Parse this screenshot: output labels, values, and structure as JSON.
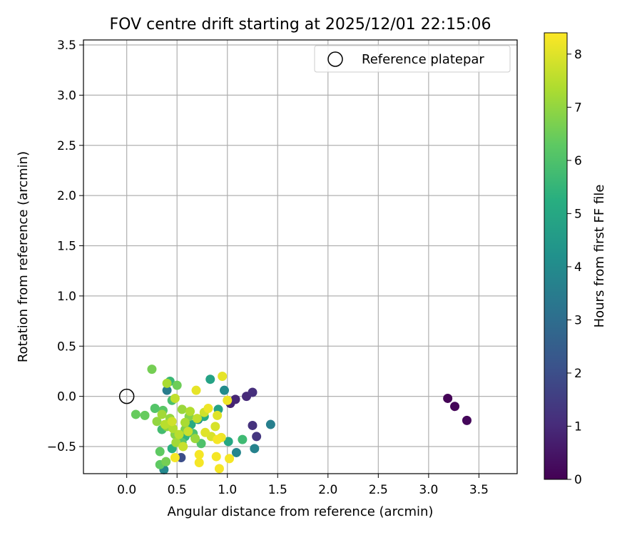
{
  "chart_data": {
    "type": "scatter",
    "title": "FOV centre drift starting at 2025/12/01 22:15:06",
    "xlabel": "Angular distance from reference (arcmin)",
    "ylabel": "Rotation from reference (arcmin)",
    "xlim": [
      -0.43,
      3.88
    ],
    "ylim": [
      -0.77,
      3.55
    ],
    "xticks": [
      0.0,
      0.5,
      1.0,
      1.5,
      2.0,
      2.5,
      3.0,
      3.5
    ],
    "yticks": [
      -0.5,
      0.0,
      0.5,
      1.0,
      1.5,
      2.0,
      2.5,
      3.0,
      3.5
    ],
    "grid": true,
    "legend": {
      "position": "top-right",
      "entries": [
        "Reference platepar"
      ]
    },
    "reference_point": {
      "x": 0.0,
      "y": 0.0,
      "label": "Reference platepar"
    },
    "colorbar": {
      "label": "Hours from first FF file",
      "range": [
        0,
        8.4
      ],
      "ticks": [
        0,
        1,
        2,
        3,
        4,
        5,
        6,
        7,
        8
      ],
      "colormap": "viridis"
    },
    "points": [
      {
        "x": 3.19,
        "y": -0.02,
        "h": 0.05
      },
      {
        "x": 3.26,
        "y": -0.1,
        "h": 0.1
      },
      {
        "x": 3.38,
        "y": -0.24,
        "h": 0.15
      },
      {
        "x": 1.03,
        "y": -0.07,
        "h": 0.8
      },
      {
        "x": 1.08,
        "y": -0.03,
        "h": 0.9
      },
      {
        "x": 1.19,
        "y": 0.0,
        "h": 1.0
      },
      {
        "x": 1.25,
        "y": 0.04,
        "h": 1.1
      },
      {
        "x": 1.25,
        "y": -0.29,
        "h": 1.2
      },
      {
        "x": 1.29,
        "y": -0.4,
        "h": 1.3
      },
      {
        "x": 0.54,
        "y": -0.61,
        "h": 2.0
      },
      {
        "x": 0.4,
        "y": 0.06,
        "h": 3.5
      },
      {
        "x": 1.43,
        "y": -0.28,
        "h": 3.6
      },
      {
        "x": 1.27,
        "y": -0.52,
        "h": 3.7
      },
      {
        "x": 1.09,
        "y": -0.56,
        "h": 3.8
      },
      {
        "x": 0.37,
        "y": -0.73,
        "h": 3.9
      },
      {
        "x": 0.97,
        "y": 0.06,
        "h": 4.0
      },
      {
        "x": 0.71,
        "y": -0.23,
        "h": 4.3
      },
      {
        "x": 0.83,
        "y": 0.17,
        "h": 4.8
      },
      {
        "x": 0.91,
        "y": -0.13,
        "h": 4.8
      },
      {
        "x": 1.01,
        "y": -0.45,
        "h": 5.0
      },
      {
        "x": 0.64,
        "y": -0.28,
        "h": 5.1
      },
      {
        "x": 0.77,
        "y": -0.2,
        "h": 5.2
      },
      {
        "x": 0.45,
        "y": -0.52,
        "h": 5.3
      },
      {
        "x": 0.58,
        "y": -0.4,
        "h": 5.4
      },
      {
        "x": 0.43,
        "y": 0.15,
        "h": 5.6
      },
      {
        "x": 1.15,
        "y": -0.43,
        "h": 5.7
      },
      {
        "x": 0.35,
        "y": -0.33,
        "h": 5.8
      },
      {
        "x": 0.45,
        "y": -0.04,
        "h": 5.9
      },
      {
        "x": 0.66,
        "y": -0.37,
        "h": 6.0
      },
      {
        "x": 0.74,
        "y": -0.47,
        "h": 6.0
      },
      {
        "x": 0.28,
        "y": -0.12,
        "h": 6.1
      },
      {
        "x": 0.36,
        "y": -0.14,
        "h": 6.2
      },
      {
        "x": 0.55,
        "y": -0.46,
        "h": 6.2
      },
      {
        "x": 0.33,
        "y": -0.55,
        "h": 6.3
      },
      {
        "x": 0.33,
        "y": -0.68,
        "h": 6.3
      },
      {
        "x": 0.09,
        "y": -0.18,
        "h": 6.4
      },
      {
        "x": 0.18,
        "y": -0.19,
        "h": 6.4
      },
      {
        "x": 0.5,
        "y": 0.11,
        "h": 6.5
      },
      {
        "x": 0.25,
        "y": 0.27,
        "h": 6.6
      },
      {
        "x": 0.39,
        "y": -0.65,
        "h": 6.6
      },
      {
        "x": 0.58,
        "y": -0.33,
        "h": 6.7
      },
      {
        "x": 0.62,
        "y": -0.2,
        "h": 6.8
      },
      {
        "x": 0.48,
        "y": -0.38,
        "h": 6.8
      },
      {
        "x": 0.4,
        "y": -0.3,
        "h": 6.9
      },
      {
        "x": 0.3,
        "y": -0.25,
        "h": 7.0
      },
      {
        "x": 0.43,
        "y": -0.22,
        "h": 7.0
      },
      {
        "x": 0.55,
        "y": -0.13,
        "h": 7.1
      },
      {
        "x": 0.68,
        "y": -0.42,
        "h": 7.1
      },
      {
        "x": 0.35,
        "y": -0.18,
        "h": 7.2
      },
      {
        "x": 0.49,
        "y": -0.46,
        "h": 7.2
      },
      {
        "x": 0.4,
        "y": 0.13,
        "h": 7.3
      },
      {
        "x": 0.58,
        "y": -0.26,
        "h": 7.3
      },
      {
        "x": 0.46,
        "y": -0.32,
        "h": 7.4
      },
      {
        "x": 0.63,
        "y": -0.15,
        "h": 7.4
      },
      {
        "x": 0.52,
        "y": -0.38,
        "h": 7.5
      },
      {
        "x": 0.38,
        "y": -0.28,
        "h": 7.5
      },
      {
        "x": 0.7,
        "y": -0.22,
        "h": 7.6
      },
      {
        "x": 0.48,
        "y": -0.02,
        "h": 7.6
      },
      {
        "x": 0.56,
        "y": -0.5,
        "h": 7.7
      },
      {
        "x": 0.61,
        "y": -0.35,
        "h": 7.7
      },
      {
        "x": 0.45,
        "y": -0.25,
        "h": 7.8
      },
      {
        "x": 0.77,
        "y": -0.16,
        "h": 7.8
      },
      {
        "x": 0.88,
        "y": -0.3,
        "h": 7.9
      },
      {
        "x": 0.84,
        "y": -0.4,
        "h": 7.9
      },
      {
        "x": 0.9,
        "y": -0.19,
        "h": 8.0
      },
      {
        "x": 0.78,
        "y": -0.36,
        "h": 8.0
      },
      {
        "x": 0.95,
        "y": 0.2,
        "h": 8.1
      },
      {
        "x": 0.69,
        "y": 0.06,
        "h": 8.1
      },
      {
        "x": 1.0,
        "y": -0.04,
        "h": 8.2
      },
      {
        "x": 0.81,
        "y": -0.12,
        "h": 8.2
      },
      {
        "x": 0.94,
        "y": -0.41,
        "h": 8.2
      },
      {
        "x": 0.89,
        "y": -0.6,
        "h": 8.3
      },
      {
        "x": 1.02,
        "y": -0.62,
        "h": 8.3
      },
      {
        "x": 0.72,
        "y": -0.66,
        "h": 8.3
      },
      {
        "x": 0.92,
        "y": -0.72,
        "h": 8.3
      },
      {
        "x": 0.48,
        "y": -0.61,
        "h": 8.3
      },
      {
        "x": 0.72,
        "y": -0.58,
        "h": 8.3
      },
      {
        "x": 0.9,
        "y": -0.43,
        "h": 8.3
      }
    ]
  }
}
